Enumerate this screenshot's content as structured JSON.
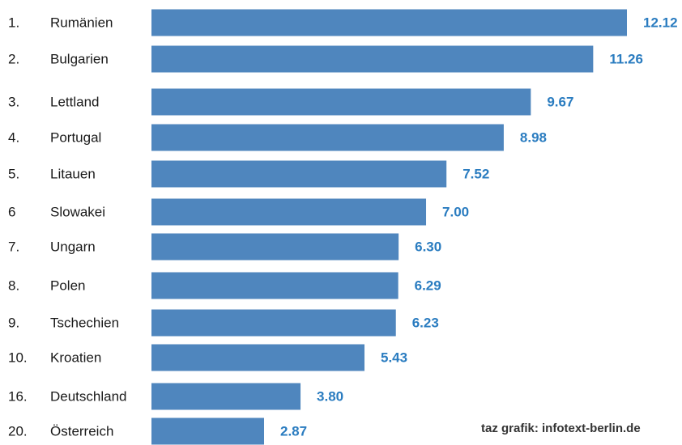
{
  "colors": {
    "bar": "#4f86be",
    "value_text": "#2a7cc0",
    "label_text": "#1a1a1a"
  },
  "credit": "taz grafik: infotext-berlin.de",
  "chart_data": {
    "type": "bar",
    "orientation": "horizontal",
    "title": "",
    "xlabel": "",
    "ylabel": "",
    "xlim": [
      0,
      12.12
    ],
    "grid": false,
    "legend": "none",
    "categories": [
      {
        "rank": "1.",
        "country": "Rumänien",
        "value": 12.12,
        "value_label": "12.12"
      },
      {
        "rank": "2.",
        "country": "Bulgarien",
        "value": 11.26,
        "value_label": "11.26"
      },
      {
        "rank": "3.",
        "country": "Lettland",
        "value": 9.67,
        "value_label": "9.67"
      },
      {
        "rank": "4.",
        "country": "Portugal",
        "value": 8.98,
        "value_label": "8.98"
      },
      {
        "rank": "5.",
        "country": "Litauen",
        "value": 7.52,
        "value_label": "7.52"
      },
      {
        "rank": "6",
        "country": "Slowakei",
        "value": 7.0,
        "value_label": "7.00"
      },
      {
        "rank": "7.",
        "country": "Ungarn",
        "value": 6.3,
        "value_label": "6.30"
      },
      {
        "rank": "8.",
        "country": "Polen",
        "value": 6.29,
        "value_label": "6.29"
      },
      {
        "rank": "9.",
        "country": "Tschechien",
        "value": 6.23,
        "value_label": "6.23"
      },
      {
        "rank": "10.",
        "country": "Kroatien",
        "value": 5.43,
        "value_label": "5.43"
      },
      {
        "rank": "16.",
        "country": "Deutschland",
        "value": 3.8,
        "value_label": "3.80"
      },
      {
        "rank": "20.",
        "country": "Österreich",
        "value": 2.87,
        "value_label": "2.87"
      }
    ]
  }
}
